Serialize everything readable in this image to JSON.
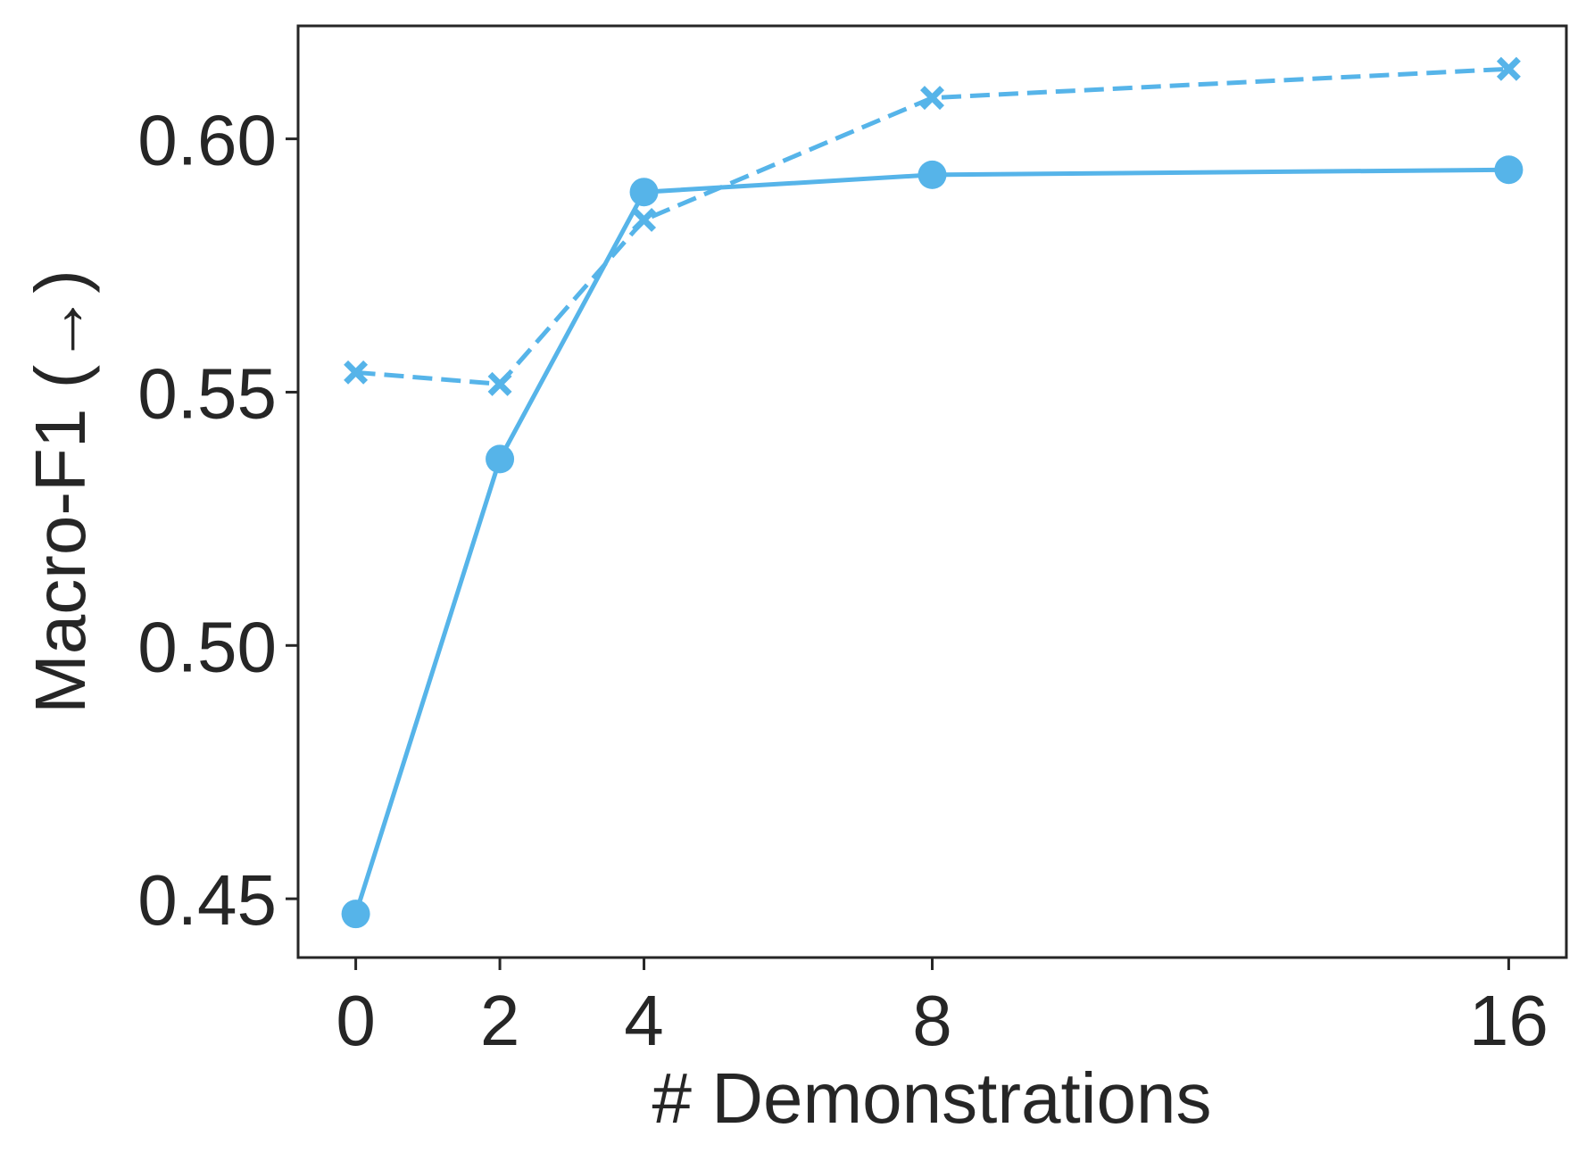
{
  "chart_data": {
    "type": "line",
    "xlabel": "# Demonstrations",
    "ylabel": "Macro-F1 (→)",
    "x": [
      0,
      2,
      4,
      8,
      16
    ],
    "series": [
      {
        "color": "#56b4e9",
        "marker": "circle",
        "linestyle": "solid",
        "values": [
          0.447,
          0.5368,
          0.5895,
          0.5929,
          0.5939
        ]
      },
      {
        "color": "#56b4e9",
        "marker": "x",
        "linestyle": "dashed",
        "values": [
          0.5539,
          0.5516,
          0.584,
          0.6081,
          0.6138
        ]
      }
    ],
    "xlim": [
      -0.8,
      16.8
    ],
    "xticks": [
      0,
      2,
      4,
      8,
      16
    ],
    "ylim": [
      0.4384,
      0.6223
    ],
    "yticks": [
      {
        "value": 0.45,
        "label": "0.45"
      },
      {
        "value": 0.5,
        "label": "0.50"
      },
      {
        "value": 0.55,
        "label": "0.55"
      },
      {
        "value": 0.6,
        "label": "0.60"
      }
    ],
    "grid": false
  }
}
